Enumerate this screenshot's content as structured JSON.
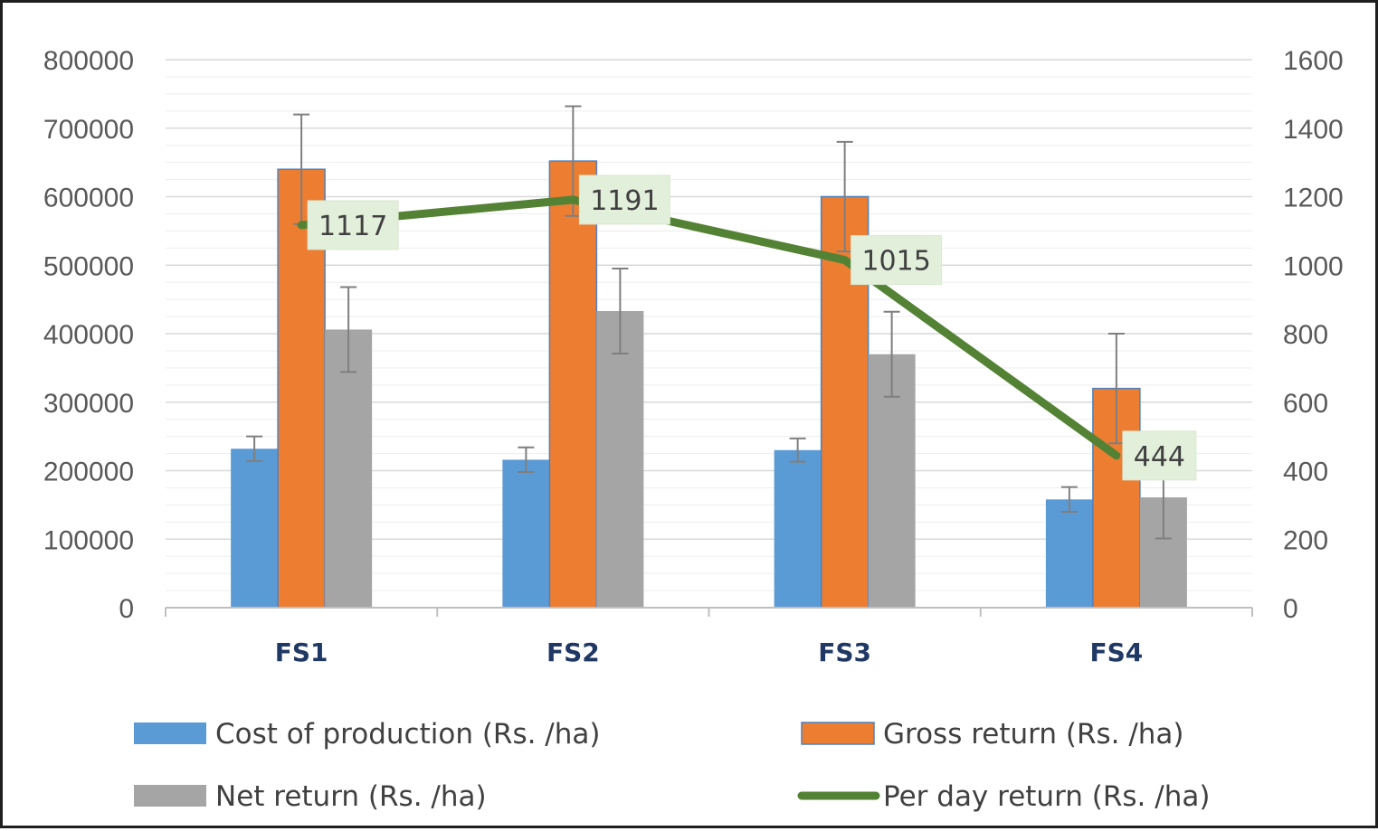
{
  "chart_data": {
    "type": "bar",
    "categories": [
      "FS1",
      "FS2",
      "FS3",
      "FS4"
    ],
    "series": [
      {
        "name": "Cost of production (Rs. /ha)",
        "kind": "bar",
        "color": "#5b9bd5",
        "values": [
          232000,
          216000,
          230000,
          158000
        ],
        "errors": [
          18000,
          18000,
          17000,
          18000
        ]
      },
      {
        "name": "Gross return (Rs. /ha)",
        "kind": "bar",
        "color": "#ed7d31",
        "values": [
          640000,
          652000,
          600000,
          320000
        ],
        "errors": [
          80000,
          80000,
          80000,
          80000
        ]
      },
      {
        "name": "Net return (Rs. /ha)",
        "kind": "bar",
        "color": "#a5a5a5",
        "values": [
          406000,
          433000,
          370000,
          161000
        ],
        "errors": [
          62000,
          62000,
          62000,
          60000
        ]
      },
      {
        "name": "Per day return (Rs. /ha)",
        "kind": "line",
        "axis": "secondary",
        "color": "#548235",
        "values": [
          1117,
          1191,
          1015,
          444
        ],
        "data_labels": [
          "1117",
          "1191",
          "1015",
          "444"
        ]
      }
    ],
    "y_primary": {
      "min": 0,
      "max": 800000,
      "ticks": [
        "0",
        "100000",
        "200000",
        "300000",
        "400000",
        "500000",
        "600000",
        "700000",
        "800000"
      ]
    },
    "y_secondary": {
      "min": 0,
      "max": 1600,
      "ticks": [
        "0",
        "200",
        "400",
        "600",
        "800",
        "1000",
        "1200",
        "1400",
        "1600"
      ]
    },
    "grid": true,
    "legend_position": "bottom",
    "label_bg_color": "#e2efda"
  }
}
